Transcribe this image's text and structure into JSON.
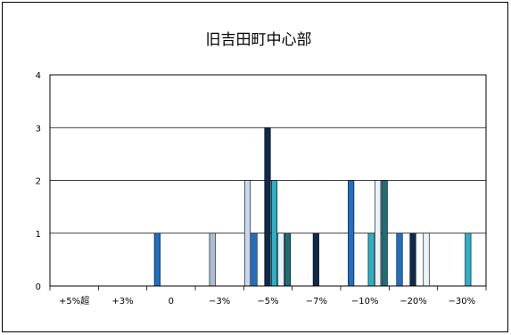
{
  "chart_data": {
    "type": "bar",
    "title": "旧吉田町中心部",
    "xlabel": "",
    "ylabel": "",
    "ylim": [
      0,
      4
    ],
    "yticks": [
      0,
      1,
      2,
      3,
      4
    ],
    "grid": true,
    "legend": "none",
    "categories": [
      "+5%超",
      "+3%",
      "0",
      "−3%",
      "−5%",
      "−7%",
      "−10%",
      "−20%",
      "−30%"
    ],
    "series": [
      {
        "color": "#C6D9F1",
        "values": [
          0,
          0,
          0,
          0,
          2,
          0,
          0,
          0,
          0
        ]
      },
      {
        "color": "#1F6FC5",
        "values": [
          0,
          0,
          1,
          0,
          1,
          0,
          2,
          1,
          0
        ]
      },
      {
        "color": "#A8BCD4",
        "values": [
          0,
          0,
          0,
          1,
          0,
          0,
          0,
          0,
          0
        ]
      },
      {
        "color": "#0F2A4A",
        "values": [
          0,
          0,
          0,
          0,
          3,
          1,
          0,
          1,
          0
        ]
      },
      {
        "color": "#2AB0C8",
        "values": [
          0,
          0,
          0,
          0,
          2,
          0,
          1,
          0,
          1
        ]
      },
      {
        "color": "#E8F4FA",
        "values": [
          0,
          0,
          0,
          0,
          1,
          0,
          2,
          1,
          0
        ]
      },
      {
        "color": "#1E6E78",
        "values": [
          0,
          0,
          0,
          0,
          1,
          0,
          2,
          0,
          0
        ]
      }
    ],
    "colors": {
      "border": "#000000",
      "grid": "#000000",
      "text": "#000000",
      "background": "#ffffff"
    }
  }
}
